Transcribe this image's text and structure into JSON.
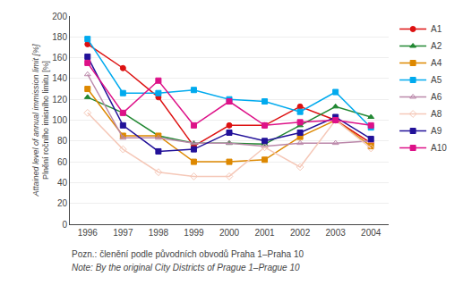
{
  "chart_data": {
    "type": "line",
    "x": [
      1996,
      1997,
      1998,
      1999,
      2000,
      2001,
      2002,
      2003,
      2004
    ],
    "xlim": [
      1995.5,
      2004.5
    ],
    "xticks": [
      1996,
      1997,
      1998,
      1999,
      2000,
      2001,
      2002,
      2003,
      2004
    ],
    "ylim": [
      0,
      200
    ],
    "yticks": [
      0,
      20,
      40,
      60,
      80,
      100,
      120,
      140,
      160,
      180,
      200
    ],
    "ylabel": [
      "Plnění ročního imisního limitu [%]",
      "Attained level of annual immission limit [%]"
    ],
    "annotations": [
      "Pozn.: členění podle původních obvodů Praha 1–Praha 10",
      "Note: By the original City Districts of Prague 1–Prague 10"
    ],
    "grid": "y",
    "legend": "right",
    "series": [
      {
        "name": "A1",
        "color": "#dd1111",
        "marker": "circle",
        "values": [
          173,
          150,
          122,
          75,
          95,
          95,
          113,
          100,
          78
        ]
      },
      {
        "name": "A2",
        "color": "#228833",
        "marker": "triangle",
        "values": [
          122,
          107,
          85,
          78,
          78,
          77,
          95,
          113,
          103
        ]
      },
      {
        "name": "A4",
        "color": "#dd8800",
        "marker": "square",
        "values": [
          130,
          85,
          85,
          60,
          60,
          62,
          84,
          100,
          75
        ]
      },
      {
        "name": "A5",
        "color": "#00aaee",
        "marker": "square",
        "values": [
          178,
          126,
          126,
          129,
          120,
          118,
          108,
          127,
          93
        ]
      },
      {
        "name": "A6",
        "color": "#bb88aa",
        "marker": "triangle-open",
        "values": [
          144,
          83,
          83,
          78,
          78,
          75,
          78,
          78,
          80
        ]
      },
      {
        "name": "A8",
        "color": "#f5c8b8",
        "marker": "diamond-open",
        "values": [
          107,
          72,
          50,
          46,
          46,
          74,
          55,
          100,
          73
        ]
      },
      {
        "name": "A9",
        "color": "#221199",
        "marker": "square",
        "values": [
          161,
          95,
          70,
          72,
          88,
          80,
          88,
          103,
          82
        ]
      },
      {
        "name": "A10",
        "color": "#dd1188",
        "marker": "square",
        "values": [
          155,
          107,
          138,
          95,
          118,
          95,
          98,
          100,
          95
        ]
      }
    ]
  }
}
